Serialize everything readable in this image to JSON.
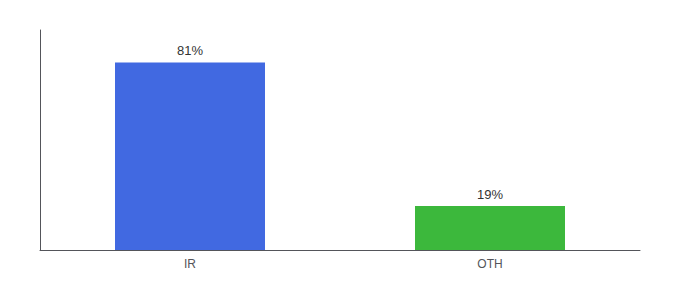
{
  "chart_data": {
    "type": "bar",
    "categories": [
      "IR",
      "OTH"
    ],
    "values": [
      81,
      19
    ],
    "value_labels": [
      "81%",
      "19%"
    ],
    "colors": [
      "#4169e1",
      "#3cb83c"
    ],
    "ylim": [
      0,
      95
    ],
    "data_labels": true,
    "tick_labels": "x",
    "grid": false
  }
}
